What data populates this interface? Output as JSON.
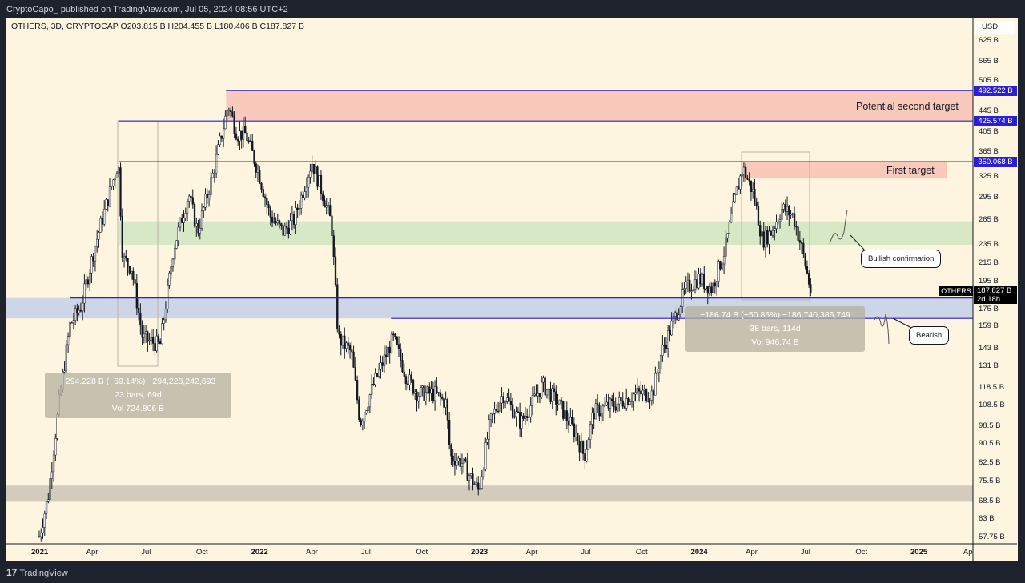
{
  "header": "CryptoCapo_ published on TradingView.com, Jul 05, 2024 08:56 UTC+2",
  "legend": "OTHERS, 3D, CRYPTOCAP  O203.815 B  H204.455 B  L180.406 B  C187.827 B",
  "footer": "TradingView",
  "chart_data": {
    "type": "candlestick",
    "symbol": "OTHERS",
    "interval": "3D",
    "exchange": "CRYPTOCAP",
    "currency": "USD",
    "scale": "log",
    "ohlc_last": {
      "open": "203.815 B",
      "high": "204.455 B",
      "low": "180.406 B",
      "close": "187.827 B"
    },
    "y_ticks": [
      "625 B",
      "565 B",
      "505 B",
      "445 B",
      "405 B",
      "365 B",
      "325 B",
      "295 B",
      "265 B",
      "235 B",
      "215 B",
      "195 B",
      "175 B",
      "159 B",
      "143 B",
      "131 B",
      "118.5 B",
      "108.5 B",
      "98.5 B",
      "90.5 B",
      "82.5 B",
      "75.5 B",
      "68.5 B",
      "63 B",
      "57.75 B"
    ],
    "y_tick_values": [
      625,
      565,
      505,
      445,
      405,
      365,
      325,
      295,
      265,
      235,
      215,
      195,
      175,
      159,
      143,
      131,
      118.5,
      108.5,
      98.5,
      90.5,
      82.5,
      75.5,
      68.5,
      63,
      57.75
    ],
    "x_ticks": [
      {
        "t": 2021.0,
        "label": "2021",
        "bold": true
      },
      {
        "t": 2021.25,
        "label": "Apr"
      },
      {
        "t": 2021.5,
        "label": "Jul"
      },
      {
        "t": 2021.75,
        "label": "Oct"
      },
      {
        "t": 2022.0,
        "label": "2022",
        "bold": true
      },
      {
        "t": 2022.25,
        "label": "Apr"
      },
      {
        "t": 2022.5,
        "label": "Jul"
      },
      {
        "t": 2022.75,
        "label": "Oct"
      },
      {
        "t": 2023.0,
        "label": "2023",
        "bold": true
      },
      {
        "t": 2023.25,
        "label": "Apr"
      },
      {
        "t": 2023.5,
        "label": "Jul"
      },
      {
        "t": 2023.75,
        "label": "Oct"
      },
      {
        "t": 2024.0,
        "label": "2024",
        "bold": true
      },
      {
        "t": 2024.25,
        "label": "Apr"
      },
      {
        "t": 2024.5,
        "label": "Jul"
      },
      {
        "t": 2024.75,
        "label": "Oct"
      },
      {
        "t": 2025.0,
        "label": "2025",
        "bold": true
      },
      {
        "t": 2025.24,
        "label": "Ap"
      }
    ],
    "price_path": [
      [
        2021.0,
        58
      ],
      [
        2021.04,
        70
      ],
      [
        2021.09,
        110
      ],
      [
        2021.14,
        160
      ],
      [
        2021.19,
        175
      ],
      [
        2021.25,
        230
      ],
      [
        2021.3,
        280
      ],
      [
        2021.36,
        350
      ],
      [
        2021.38,
        220
      ],
      [
        2021.42,
        210
      ],
      [
        2021.47,
        150
      ],
      [
        2021.55,
        145
      ],
      [
        2021.61,
        230
      ],
      [
        2021.68,
        300
      ],
      [
        2021.72,
        250
      ],
      [
        2021.79,
        330
      ],
      [
        2021.86,
        460
      ],
      [
        2021.9,
        400
      ],
      [
        2021.94,
        400
      ],
      [
        2022.0,
        330
      ],
      [
        2022.05,
        270
      ],
      [
        2022.11,
        250
      ],
      [
        2022.16,
        265
      ],
      [
        2022.24,
        350
      ],
      [
        2022.29,
        300
      ],
      [
        2022.33,
        260
      ],
      [
        2022.36,
        150
      ],
      [
        2022.42,
        140
      ],
      [
        2022.46,
        100
      ],
      [
        2022.52,
        120
      ],
      [
        2022.61,
        150
      ],
      [
        2022.67,
        125
      ],
      [
        2022.72,
        115
      ],
      [
        2022.8,
        115
      ],
      [
        2022.85,
        110
      ],
      [
        2022.87,
        85
      ],
      [
        2022.92,
        83
      ],
      [
        2023.0,
        72
      ],
      [
        2023.05,
        100
      ],
      [
        2023.11,
        115
      ],
      [
        2023.19,
        100
      ],
      [
        2023.29,
        120
      ],
      [
        2023.36,
        110
      ],
      [
        2023.44,
        95
      ],
      [
        2023.48,
        85
      ],
      [
        2023.52,
        105
      ],
      [
        2023.58,
        108
      ],
      [
        2023.64,
        110
      ],
      [
        2023.71,
        115
      ],
      [
        2023.79,
        115
      ],
      [
        2023.83,
        140
      ],
      [
        2023.89,
        165
      ],
      [
        2023.94,
        190
      ],
      [
        2024.0,
        200
      ],
      [
        2024.06,
        190
      ],
      [
        2024.12,
        230
      ],
      [
        2024.17,
        300
      ],
      [
        2024.2,
        340
      ],
      [
        2024.25,
        300
      ],
      [
        2024.29,
        240
      ],
      [
        2024.33,
        250
      ],
      [
        2024.38,
        280
      ],
      [
        2024.43,
        270
      ],
      [
        2024.47,
        230
      ],
      [
        2024.51,
        188
      ]
    ],
    "horizontal_levels": [
      {
        "value": 492.522,
        "label": "492.522 B",
        "from": 2021.85
      },
      {
        "value": 425.574,
        "label": "425.574 B",
        "from": 2021.36
      },
      {
        "value": 350.068,
        "label": "350.068 B",
        "from": 2021.36
      },
      {
        "value": 182,
        "from": 2021.14
      },
      {
        "value": 165,
        "from": 2022.6
      }
    ],
    "zones": [
      {
        "name": "potential-second-target",
        "from_value": 425.574,
        "to_value": 492.522,
        "color": "#f9c9bb"
      },
      {
        "name": "first-target",
        "from_value": 323,
        "to_value": 350.068,
        "color": "#f9c9bb"
      },
      {
        "name": "support-green",
        "from_value": 235,
        "to_value": 263,
        "color": "#d7e8c6"
      },
      {
        "name": "support-blue",
        "from_value": 165,
        "to_value": 182,
        "color": "#cdd6e6"
      },
      {
        "name": "bottom-gray",
        "from_value": 68.5,
        "to_value": 74,
        "color": "#d3cbbb"
      }
    ],
    "annotations": {
      "second_target": "Potential second target",
      "first_target": "First target",
      "bullish": "Bullish confirmation",
      "bearish": "Bearish"
    },
    "measurements": [
      {
        "line1": "−294.228 B (−69.14%) −294,228,242,693",
        "line2": "23 bars, 69d",
        "line3": "Vol 724.806 B"
      },
      {
        "line1": "−186.74 B (−50.86%) −186,740,386,749",
        "line2": "38 bars, 114d",
        "line3": "Vol 946.74 B"
      }
    ],
    "last_price": {
      "symbol": "OTHERS",
      "value": "187.827 B",
      "countdown": "2d 18h"
    },
    "colors": {
      "up": "#ffffff",
      "down": "#131722",
      "level": "#2b1fd6",
      "bg": "#fdf5df"
    }
  }
}
